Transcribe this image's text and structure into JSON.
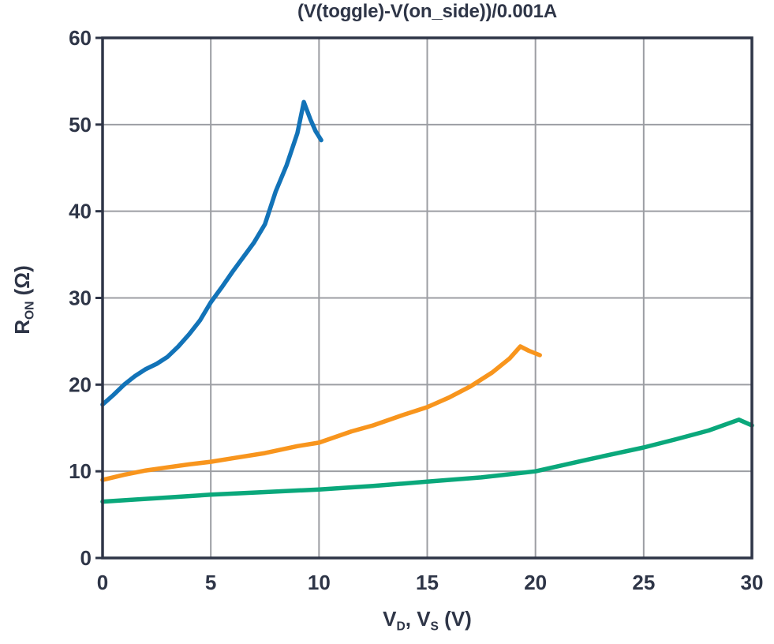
{
  "page": {
    "background": "#ffffff"
  },
  "chart_data": {
    "type": "line",
    "title": "(V(toggle)-V(on_side))/0.001A",
    "xlabel_parts": [
      {
        "text": "V"
      },
      {
        "text": "D",
        "sub": true
      },
      {
        "text": ", V"
      },
      {
        "text": "S",
        "sub": true
      },
      {
        "text": " (V)"
      }
    ],
    "ylabel_parts": [
      {
        "text": "R"
      },
      {
        "text": "ON",
        "sub": true
      },
      {
        "text": " (Ω)"
      }
    ],
    "xlim": [
      0,
      30
    ],
    "ylim": [
      0,
      60
    ],
    "xticks": [
      0,
      5,
      10,
      15,
      20,
      25,
      30
    ],
    "yticks": [
      0,
      10,
      20,
      30,
      40,
      50,
      60
    ],
    "grid": true,
    "legend": "none",
    "colors": {
      "axis": "#2E3547",
      "grid": "#9C9EA3",
      "text": "#2E3547",
      "blue": "#1273B8",
      "orange": "#F8951D",
      "green": "#0AA87B"
    },
    "series": [
      {
        "name": "blue-curve",
        "color": "#1273B8",
        "x": [
          0,
          0.5,
          1,
          1.5,
          2,
          2.5,
          3,
          3.5,
          4,
          4.5,
          5,
          5.5,
          6,
          6.5,
          7,
          7.5,
          8,
          8.5,
          9,
          9.3,
          9.6,
          9.85,
          10.1
        ],
        "y": [
          17.7,
          18.8,
          20.0,
          21.0,
          21.8,
          22.4,
          23.2,
          24.4,
          25.8,
          27.4,
          29.5,
          31.2,
          33.0,
          34.7,
          36.4,
          38.5,
          42.3,
          45.3,
          49.0,
          52.6,
          50.6,
          49.2,
          48.2
        ]
      },
      {
        "name": "orange-curve",
        "color": "#F8951D",
        "x": [
          0,
          1,
          2,
          3,
          4,
          5,
          6,
          7.5,
          9,
          10,
          11.5,
          12.5,
          14,
          15,
          16,
          17,
          18,
          18.8,
          19.3,
          19.7,
          20.2
        ],
        "y": [
          9.0,
          9.6,
          10.1,
          10.45,
          10.8,
          11.1,
          11.5,
          12.1,
          12.9,
          13.3,
          14.6,
          15.3,
          16.6,
          17.4,
          18.5,
          19.8,
          21.4,
          23.0,
          24.4,
          23.9,
          23.4
        ]
      },
      {
        "name": "green-curve",
        "color": "#0AA87B",
        "x": [
          0,
          2.5,
          5,
          7.5,
          10,
          12.5,
          15,
          17.5,
          20,
          22.5,
          25,
          26.5,
          28,
          29,
          29.4,
          30
        ],
        "y": [
          6.5,
          6.9,
          7.3,
          7.6,
          7.9,
          8.3,
          8.8,
          9.3,
          10.0,
          11.4,
          12.75,
          13.7,
          14.7,
          15.6,
          15.95,
          15.3
        ]
      }
    ]
  }
}
